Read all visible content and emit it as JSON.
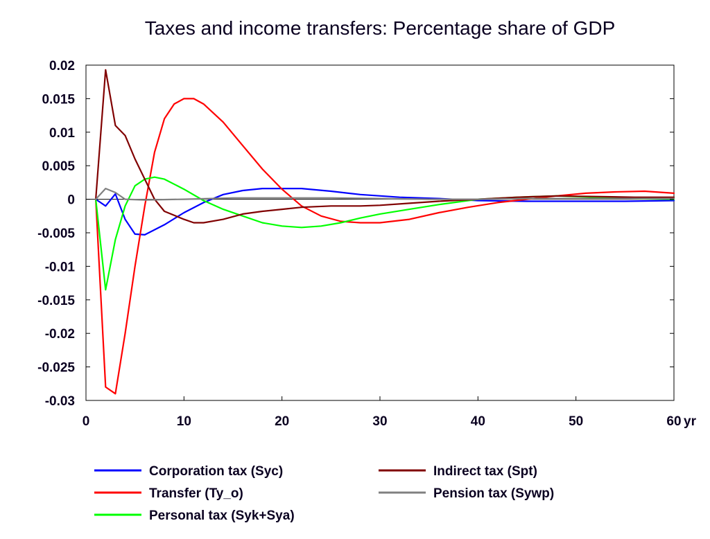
{
  "chart_data": {
    "type": "line",
    "title": "Taxes and income transfers: Percentage share of GDP",
    "xlabel": "",
    "ylabel": "",
    "x_unit_label": "yr",
    "xlim": [
      0,
      60
    ],
    "ylim": [
      -0.03,
      0.02
    ],
    "xticks": [
      "0",
      "10",
      "20",
      "30",
      "40",
      "50",
      "60"
    ],
    "yticks": [
      "0.02",
      "0.015",
      "0.01",
      "0.005",
      "0",
      "-0.005",
      "-0.01",
      "-0.015",
      "-0.02",
      "-0.025",
      "-0.03"
    ],
    "grid": false,
    "legend_position": "bottom",
    "series": [
      {
        "name": "Corporation tax (Syc)",
        "color": "#0000ff",
        "points": [
          [
            1,
            0
          ],
          [
            2,
            -0.001
          ],
          [
            3,
            0.0008
          ],
          [
            4,
            -0.003
          ],
          [
            5,
            -0.0052
          ],
          [
            6,
            -0.0053
          ],
          [
            8,
            -0.0038
          ],
          [
            10,
            -0.002
          ],
          [
            12,
            -0.0005
          ],
          [
            14,
            0.0007
          ],
          [
            16,
            0.0013
          ],
          [
            18,
            0.0016
          ],
          [
            20,
            0.0016
          ],
          [
            22,
            0.0016
          ],
          [
            25,
            0.0012
          ],
          [
            28,
            0.0007
          ],
          [
            32,
            0.0003
          ],
          [
            36,
            0.0001
          ],
          [
            40,
            -0.0002
          ],
          [
            45,
            -0.0003
          ],
          [
            50,
            -0.0003
          ],
          [
            55,
            -0.0003
          ],
          [
            60,
            -0.0002
          ]
        ]
      },
      {
        "name": "Transfer (Ty_o)",
        "color": "#ff0000",
        "points": [
          [
            1,
            0
          ],
          [
            2,
            -0.028
          ],
          [
            3,
            -0.029
          ],
          [
            4,
            -0.02
          ],
          [
            5,
            -0.01
          ],
          [
            6,
            -0.001
          ],
          [
            7,
            0.007
          ],
          [
            8,
            0.012
          ],
          [
            9,
            0.0142
          ],
          [
            10,
            0.015
          ],
          [
            11,
            0.015
          ],
          [
            12,
            0.0142
          ],
          [
            14,
            0.0115
          ],
          [
            16,
            0.008
          ],
          [
            18,
            0.0045
          ],
          [
            20,
            0.0015
          ],
          [
            22,
            -0.001
          ],
          [
            24,
            -0.0025
          ],
          [
            26,
            -0.0033
          ],
          [
            28,
            -0.0035
          ],
          [
            30,
            -0.0035
          ],
          [
            33,
            -0.003
          ],
          [
            36,
            -0.002
          ],
          [
            39,
            -0.0012
          ],
          [
            42,
            -0.0005
          ],
          [
            45,
            0
          ],
          [
            48,
            0.0005
          ],
          [
            51,
            0.0009
          ],
          [
            54,
            0.0011
          ],
          [
            57,
            0.0012
          ],
          [
            60,
            0.0009
          ]
        ]
      },
      {
        "name": "Personal tax (Syk+Sya)",
        "color": "#00ff00",
        "points": [
          [
            1,
            0
          ],
          [
            2,
            -0.0135
          ],
          [
            3,
            -0.006
          ],
          [
            4,
            -0.001
          ],
          [
            5,
            0.002
          ],
          [
            6,
            0.003
          ],
          [
            7,
            0.0033
          ],
          [
            8,
            0.003
          ],
          [
            10,
            0.0015
          ],
          [
            12,
            -0.0002
          ],
          [
            14,
            -0.0015
          ],
          [
            16,
            -0.0025
          ],
          [
            18,
            -0.0035
          ],
          [
            20,
            -0.004
          ],
          [
            22,
            -0.0042
          ],
          [
            24,
            -0.004
          ],
          [
            26,
            -0.0035
          ],
          [
            28,
            -0.0028
          ],
          [
            30,
            -0.0022
          ],
          [
            33,
            -0.0015
          ],
          [
            36,
            -0.0008
          ],
          [
            40,
            0
          ],
          [
            44,
            0.0003
          ],
          [
            48,
            0.0005
          ],
          [
            52,
            0.0003
          ],
          [
            56,
            0.0001
          ],
          [
            60,
            0
          ]
        ]
      },
      {
        "name": "Indirect tax (Spt)",
        "color": "#800000",
        "points": [
          [
            1,
            0
          ],
          [
            2,
            0.0193
          ],
          [
            3,
            0.011
          ],
          [
            4,
            0.0095
          ],
          [
            5,
            0.006
          ],
          [
            6,
            0.003
          ],
          [
            7,
            0
          ],
          [
            8,
            -0.0018
          ],
          [
            10,
            -0.003
          ],
          [
            11,
            -0.0035
          ],
          [
            12,
            -0.0035
          ],
          [
            14,
            -0.003
          ],
          [
            16,
            -0.0022
          ],
          [
            18,
            -0.0018
          ],
          [
            20,
            -0.0015
          ],
          [
            22,
            -0.0012
          ],
          [
            25,
            -0.001
          ],
          [
            28,
            -0.001
          ],
          [
            30,
            -0.0009
          ],
          [
            33,
            -0.0006
          ],
          [
            36,
            -0.0003
          ],
          [
            40,
            0
          ],
          [
            44,
            0.0003
          ],
          [
            48,
            0.0005
          ],
          [
            52,
            0.0004
          ],
          [
            56,
            0.0003
          ],
          [
            60,
            0.0003
          ]
        ]
      },
      {
        "name": "Pension tax (Sywp)",
        "color": "#808080",
        "points": [
          [
            1,
            0
          ],
          [
            2,
            0.0016
          ],
          [
            3,
            0.001
          ],
          [
            4,
            0
          ],
          [
            6,
            -0.0001
          ],
          [
            10,
            0
          ],
          [
            15,
            0.0002
          ],
          [
            20,
            0.0002
          ],
          [
            25,
            0.0002
          ],
          [
            30,
            0.0001
          ],
          [
            35,
            0
          ],
          [
            40,
            0
          ],
          [
            45,
            0.0001
          ],
          [
            50,
            0.0001
          ],
          [
            55,
            0.0001
          ],
          [
            60,
            0.0001
          ]
        ]
      }
    ]
  }
}
